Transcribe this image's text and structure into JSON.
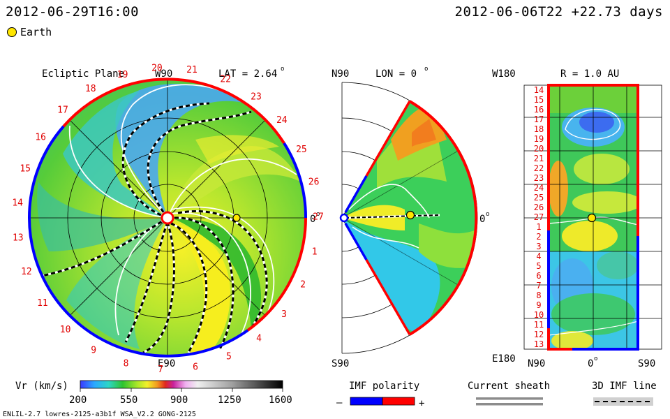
{
  "header": {
    "datetime": "2012-06-29T16:00",
    "run_info": "2012-06-06T22 +22.73 days",
    "legend_earth": "Earth"
  },
  "colors": {
    "earth": "#ffe600",
    "imf_negative": "#0000ff",
    "imf_positive": "#ff0000",
    "sheath": "#8c8c8c"
  },
  "ecliptic": {
    "title": "Ecliptic Plane",
    "top_label": "W90",
    "bottom_label": "E90",
    "lat_label": "LAT = 2.64",
    "deg_sym": "o",
    "zero_label": "0",
    "rotations": [
      "20",
      "21",
      "22",
      "23",
      "24",
      "25",
      "26",
      "27",
      "1",
      "2",
      "3",
      "4",
      "5",
      "6",
      "7",
      "8",
      "9",
      "10",
      "11",
      "12",
      "13",
      "14",
      "15",
      "16",
      "17",
      "18",
      "19"
    ]
  },
  "meridional": {
    "top_label": "N90",
    "bottom_label": "S90",
    "lon_label": "LON = 0",
    "zero_label": "0"
  },
  "radial": {
    "top_label": "W180",
    "bottom_label": "E180",
    "r_label": "R = 1.0 AU",
    "xlabels": [
      "N90",
      "0",
      "S90"
    ],
    "ylabels": [
      "14",
      "15",
      "16",
      "17",
      "18",
      "19",
      "20",
      "21",
      "22",
      "23",
      "24",
      "25",
      "26",
      "27",
      "1",
      "2",
      "3",
      "4",
      "5",
      "6",
      "7",
      "8",
      "9",
      "10",
      "11",
      "12",
      "13"
    ]
  },
  "colorbar": {
    "label": "Vr (km/s)",
    "ticks": [
      "200",
      "550",
      "900",
      "1250",
      "1600"
    ]
  },
  "imf_legend": {
    "label": "IMF polarity",
    "minus": "–",
    "plus": "+"
  },
  "sheath_legend": {
    "label": "Current sheath"
  },
  "imfline_legend": {
    "label": "3D IMF line"
  },
  "footer": {
    "model": "ENLIL-2.7 lowres-2125-a3b1f WSA_V2.2 GONG-2125"
  }
}
